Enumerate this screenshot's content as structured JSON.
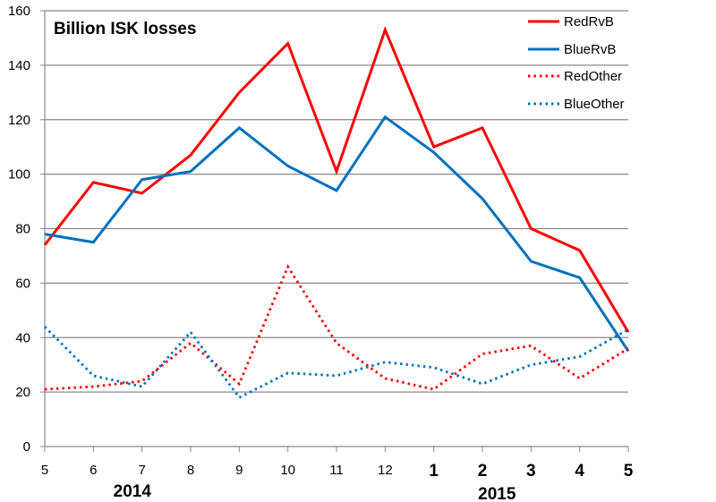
{
  "chart_data": {
    "type": "line",
    "title": "Billion ISK losses",
    "xlabel": "",
    "ylabel": "",
    "categories": [
      "5",
      "6",
      "7",
      "8",
      "9",
      "10",
      "11",
      "12",
      "1",
      "2",
      "3",
      "4",
      "5"
    ],
    "bold_categories_from_index": 8,
    "year_labels": [
      {
        "label": "2014",
        "at_index": 1.8
      },
      {
        "label": "2015",
        "at_index": 9.3
      }
    ],
    "ylim": [
      0,
      160
    ],
    "yticks": [
      0,
      20,
      40,
      60,
      80,
      100,
      120,
      140,
      160
    ],
    "grid": true,
    "legend_position": "top-right",
    "series": [
      {
        "name": "RedRvB",
        "color": "#ff0000",
        "style": "solid",
        "values": [
          74,
          97,
          93,
          107,
          130,
          148,
          101,
          153,
          110,
          117,
          80,
          72,
          42
        ]
      },
      {
        "name": "BlueRvB",
        "color": "#0070c0",
        "style": "solid",
        "values": [
          78,
          75,
          98,
          101,
          117,
          103,
          94,
          121,
          108,
          91,
          68,
          62,
          35
        ]
      },
      {
        "name": "RedOther",
        "color": "#ff0000",
        "style": "dotted",
        "values": [
          21,
          22,
          24,
          38,
          23,
          66,
          38,
          25,
          21,
          34,
          37,
          25,
          36
        ]
      },
      {
        "name": "BlueOther",
        "color": "#0070c0",
        "style": "dotted",
        "values": [
          44,
          26,
          22,
          42,
          18,
          27,
          26,
          31,
          29,
          23,
          30,
          33,
          43
        ]
      }
    ]
  }
}
